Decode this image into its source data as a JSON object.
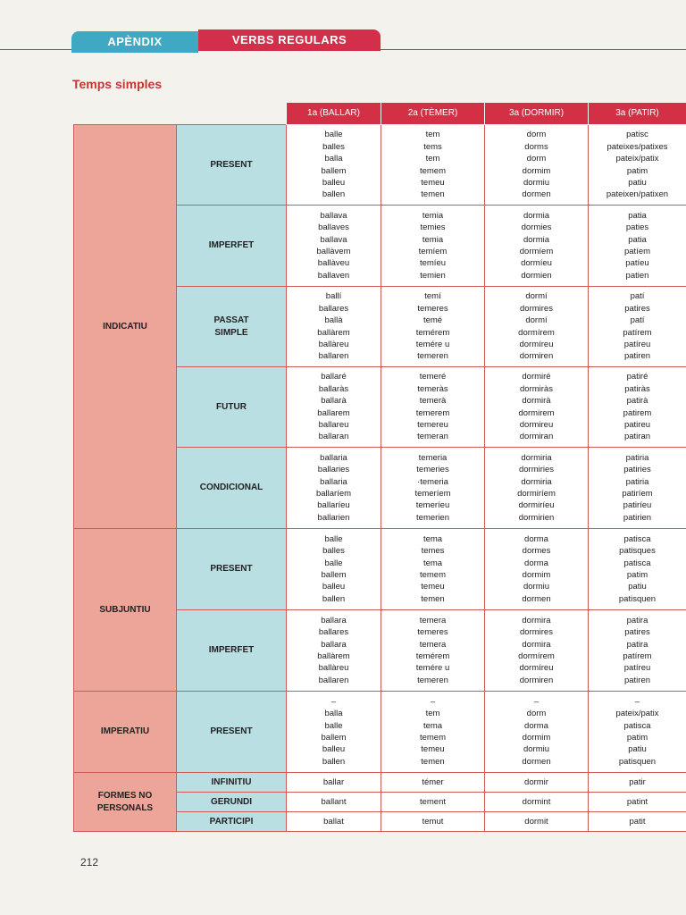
{
  "header": {
    "tab_appendix": "APÈNDIX",
    "tab_verbs": "VERBS REGULARS"
  },
  "section_title": "Temps simples",
  "columns": [
    "1a (BALLAR)",
    "2a (TÈMER)",
    "3a (DORMIR)",
    "3a (PATIR)"
  ],
  "moods": {
    "indicatiu": "INDICATIU",
    "subjuntiu": "SUBJUNTIU",
    "imperatiu": "IMPERATIU",
    "formes": "FORMES NO PERSONALS"
  },
  "rows": [
    {
      "tense": "PRESENT",
      "forms": [
        "balle\nballes\nballa\nballem\nballeu\nballen",
        "tem\ntems\ntem\ntemem\ntemeu\ntemen",
        "dorm\ndorms\ndorm\ndormim\ndormiu\ndormen",
        "patisc\npateixes/patixes\npateix/patix\npatim\npatiu\npateixen/patixen"
      ]
    },
    {
      "tense": "IMPERFET",
      "forms": [
        "ballava\nballaves\nballava\nballàvem\nballàveu\nballaven",
        "temia\ntemies\ntemia\ntemíem\ntemíeu\ntemien",
        "dormia\ndormies\ndormia\ndormíem\ndormíeu\ndormien",
        "patia\npaties\npatia\npatíem\npatíeu\npatien"
      ]
    },
    {
      "tense": "PASSAT\nSIMPLE",
      "forms": [
        "ballí\nballares\nballà\nballàrem\nballàreu\nballaren",
        "temí\ntemeres\ntemé\ntemérem\ntemére u\ntemeren",
        "dormí\ndormires\ndormí\ndormírem\ndormíreu\ndormiren",
        "patí\npatires\npatí\npatírem\npatíreu\npatiren"
      ]
    },
    {
      "tense": "FUTUR",
      "forms": [
        "ballaré\nballaràs\nballarà\nballarem\nballareu\nballaran",
        "temeré\ntemeràs\ntemerà\ntemerem\ntemereu\ntemeran",
        "dormiré\ndormiràs\ndormirà\ndormirem\ndormireu\ndormiran",
        "patiré\npatiràs\npatirà\npatirem\npatireu\npatiran"
      ]
    },
    {
      "tense": "CONDICIONAL",
      "forms": [
        "ballaria\nballaries\nballaria\nballaríem\nballaríeu\nballarien",
        "temeria\ntemeries\n·temeria\ntemeríem\ntemeríeu\ntemerien",
        "dormiria\ndormiries\ndormiria\ndormiríem\ndormiríeu\ndormirien",
        "patiria\npatiries\npatiria\npatiríem\npatiríeu\npatirien"
      ]
    },
    {
      "tense": "PRESENT",
      "forms": [
        "balle\nballes\nballe\nballem\nballeu\nballen",
        "tema\ntemes\ntema\ntemem\ntemeu\ntemen",
        "dorma\ndormes\ndorma\ndormim\ndormiu\ndormen",
        "patisca\npatisques\npatisca\npatim\npatiu\npatisquen"
      ]
    },
    {
      "tense": "IMPERFET",
      "forms": [
        "ballara\nballares\nballara\nballàrem\nballàreu\nballaren",
        "temera\ntemeres\ntemera\ntemérem\ntemére u\ntemeren",
        "dormira\ndormires\ndormira\ndormírem\ndormíreu\ndormiren",
        "patira\npatires\npatira\npatírem\npatíreu\npatiren"
      ]
    },
    {
      "tense": "PRESENT",
      "forms": [
        "–\nballa\nballe\nballem\nballeu\nballen",
        "–\ntem\ntema\ntemem\ntemeu\ntemen",
        "–\ndorm\ndorma\ndormim\ndormiu\ndormen",
        "–\npateix/patix\npatisca\npatim\npatiu\npatisquen"
      ]
    },
    {
      "tense": "INFINITIU",
      "forms": [
        "ballar",
        "témer",
        "dormir",
        "patir"
      ]
    },
    {
      "tense": "GERUNDI",
      "forms": [
        "ballant",
        "tement",
        "dormint",
        "patint"
      ]
    },
    {
      "tense": "PARTICIPI",
      "forms": [
        "ballat",
        "temut",
        "dormit",
        "patit"
      ]
    }
  ],
  "page_number": "212"
}
